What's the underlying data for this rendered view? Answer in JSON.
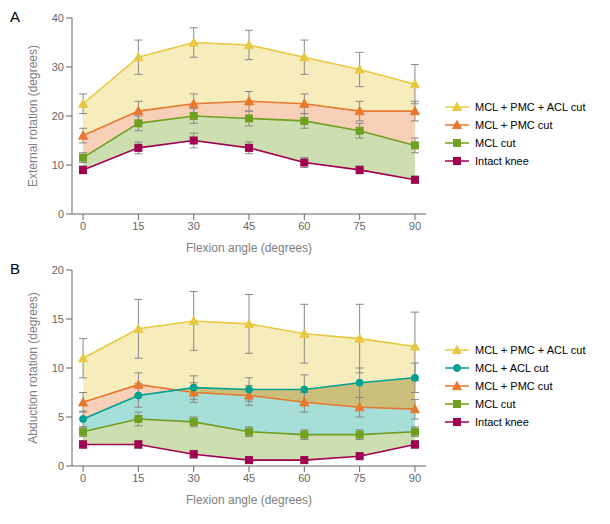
{
  "chart_data": [
    {
      "type": "line",
      "title": "A",
      "xlabel": "Flexion angle (degrees)",
      "ylabel": "External rotation (degrees)",
      "x": [
        0,
        15,
        30,
        45,
        60,
        75,
        90
      ],
      "xlim": [
        -3,
        93
      ],
      "xticks": [
        0,
        15,
        30,
        45,
        60,
        75,
        90
      ],
      "ylim": [
        0,
        40
      ],
      "yticks": [
        0,
        10,
        20,
        30,
        40
      ],
      "grid": false,
      "legend": "right",
      "series": [
        {
          "name": "MCL + PMC + ACL cut",
          "color": "#E8C840",
          "marker": "triangle",
          "values": [
            22.5,
            32.0,
            35.0,
            34.5,
            32.0,
            29.5,
            26.5
          ],
          "errors": [
            2.0,
            3.5,
            3.0,
            3.0,
            3.5,
            3.5,
            4.0
          ]
        },
        {
          "name": "MCL + PMC cut",
          "color": "#E87830",
          "marker": "triangle",
          "values": [
            16.0,
            21.0,
            22.5,
            23.0,
            22.5,
            21.0,
            21.0
          ],
          "errors": [
            1.5,
            2.0,
            2.0,
            2.0,
            2.0,
            2.0,
            2.0
          ]
        },
        {
          "name": "MCL cut",
          "color": "#70A020",
          "marker": "square",
          "values": [
            11.5,
            18.5,
            20.0,
            19.5,
            19.0,
            17.0,
            14.0
          ],
          "errors": [
            1.0,
            1.5,
            1.5,
            1.5,
            1.5,
            1.5,
            1.5
          ]
        },
        {
          "name": "Intact knee",
          "color": "#A00050",
          "marker": "square",
          "values": [
            9.0,
            13.5,
            15.0,
            13.5,
            10.5,
            9.0,
            7.0
          ],
          "errors": [
            0.8,
            1.2,
            1.5,
            1.2,
            1.0,
            0.8,
            0.7
          ]
        }
      ]
    },
    {
      "type": "line",
      "title": "B",
      "xlabel": "Flexion angle (degrees)",
      "ylabel": "Abduction rotation (degrees)",
      "x": [
        0,
        15,
        30,
        45,
        60,
        75,
        90
      ],
      "xlim": [
        -3,
        93
      ],
      "xticks": [
        0,
        15,
        30,
        45,
        60,
        75,
        90
      ],
      "ylim": [
        0,
        20
      ],
      "yticks": [
        0,
        5,
        10,
        15,
        20
      ],
      "grid": false,
      "legend": "right",
      "series": [
        {
          "name": "MCL + PMC + ACL cut",
          "color": "#E8C840",
          "marker": "triangle",
          "values": [
            11.0,
            14.0,
            14.8,
            14.5,
            13.5,
            13.0,
            12.2
          ],
          "errors": [
            2.0,
            3.0,
            3.0,
            3.0,
            3.0,
            3.5,
            3.5
          ]
        },
        {
          "name": "MCL + ACL cut",
          "color": "#00A090",
          "marker": "circle",
          "values": [
            4.8,
            7.2,
            8.0,
            7.8,
            7.8,
            8.5,
            9.0
          ],
          "errors": [
            0.8,
            1.2,
            1.2,
            1.2,
            1.5,
            1.5,
            1.5
          ]
        },
        {
          "name": "MCL + PMC cut",
          "color": "#E87830",
          "marker": "triangle",
          "values": [
            6.5,
            8.3,
            7.5,
            7.2,
            6.5,
            6.0,
            5.8
          ],
          "errors": [
            1.0,
            1.2,
            1.0,
            1.0,
            1.0,
            1.0,
            1.0
          ]
        },
        {
          "name": "MCL cut",
          "color": "#70A020",
          "marker": "square",
          "values": [
            3.5,
            4.8,
            4.5,
            3.5,
            3.2,
            3.2,
            3.5
          ],
          "errors": [
            0.5,
            0.7,
            0.5,
            0.5,
            0.5,
            0.5,
            0.5
          ]
        },
        {
          "name": "Intact knee",
          "color": "#A00050",
          "marker": "square",
          "values": [
            2.2,
            2.2,
            1.2,
            0.6,
            0.6,
            1.0,
            2.2
          ],
          "errors": [
            0.4,
            0.4,
            0.4,
            0.3,
            0.3,
            0.3,
            0.4
          ]
        }
      ]
    }
  ]
}
